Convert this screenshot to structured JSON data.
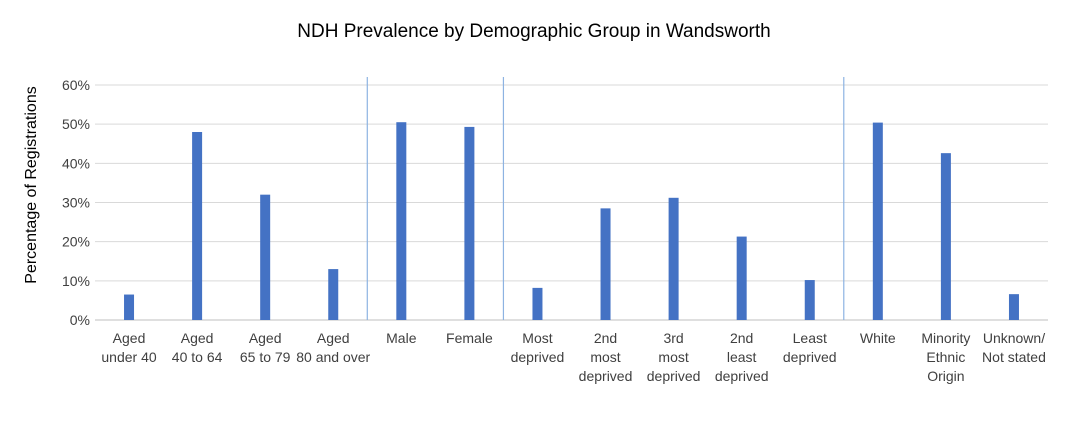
{
  "chart_data": {
    "type": "bar",
    "title": "NDH Prevalence by Demographic Group in Wandsworth",
    "ylabel": "Percentage of Registrations",
    "xlabel": "",
    "ylim": [
      0,
      60
    ],
    "yticks": [
      "0%",
      "10%",
      "20%",
      "30%",
      "40%",
      "50%",
      "60%"
    ],
    "grid": true,
    "legend": "none",
    "bar_color": "#4472C4",
    "categories": [
      [
        "Aged",
        "under 40"
      ],
      [
        "Aged",
        "40 to 64"
      ],
      [
        "Aged",
        "65 to 79"
      ],
      [
        "Aged",
        "80 and over"
      ],
      [
        "Male"
      ],
      [
        "Female"
      ],
      [
        "Most",
        "deprived"
      ],
      [
        "2nd",
        "most",
        "deprived"
      ],
      [
        "3rd",
        "most",
        "deprived"
      ],
      [
        "2nd",
        "least",
        "deprived"
      ],
      [
        "Least",
        "deprived"
      ],
      [
        "White"
      ],
      [
        "Minority",
        "Ethnic",
        "Origin"
      ],
      [
        "Unknown/",
        "Not stated"
      ]
    ],
    "values": [
      6.5,
      48,
      32,
      13,
      50.5,
      49.3,
      8.2,
      28.5,
      31.2,
      21.3,
      10.2,
      50.4,
      42.6,
      6.6
    ],
    "group_separators_after": [
      3,
      5,
      10
    ]
  }
}
